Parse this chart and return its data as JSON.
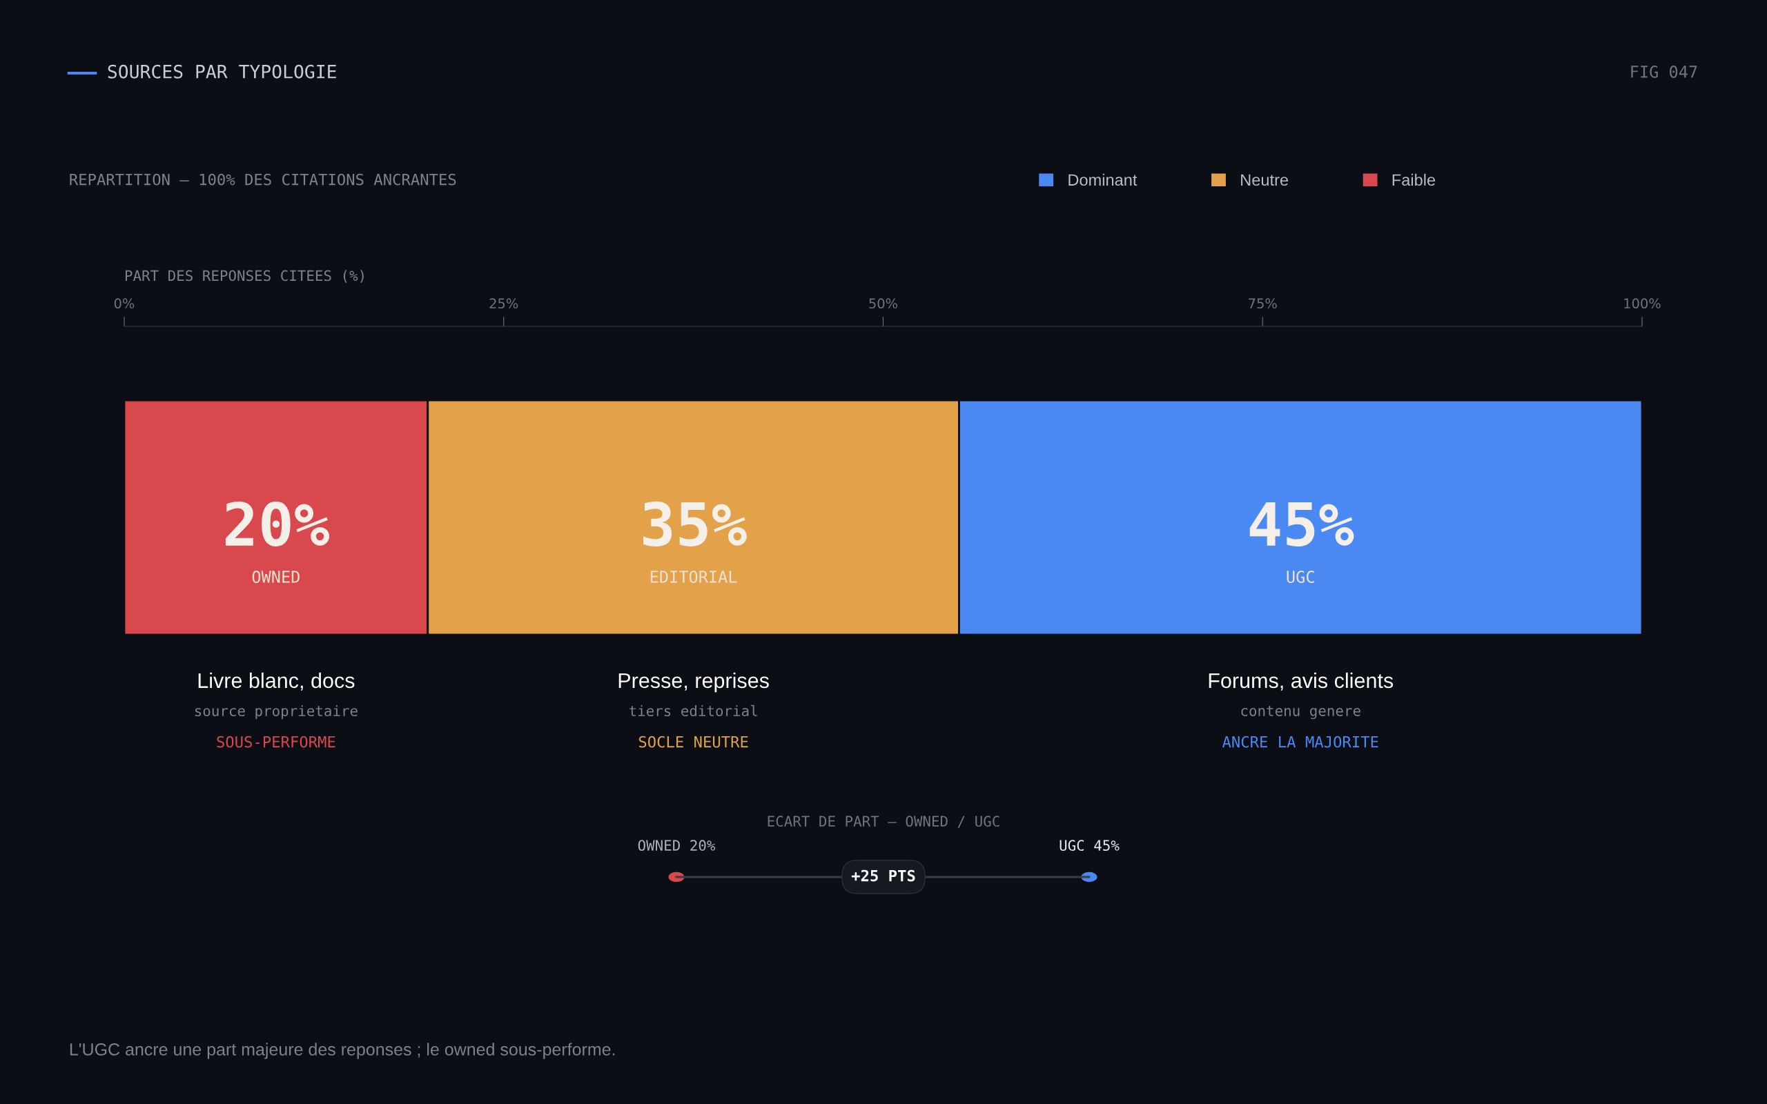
{
  "chart_data": {
    "type": "bar",
    "orientation": "horizontal",
    "stacked": true,
    "title": "SOURCES PAR TYPOLOGIE",
    "subtitle": "REPARTITION — 100% DES CITATIONS ANCRANTES",
    "xlabel": "PART DES REPONSES CITEES (%)",
    "categories": [
      null
    ],
    "series": [
      {
        "name": "Faible",
        "color": "#d9484c",
        "values": [
          20
        ],
        "value_labels": [
          "20%"
        ]
      },
      {
        "name": "Neutre",
        "color": "#e3a14a",
        "values": [
          35
        ],
        "value_labels": [
          "35%"
        ]
      },
      {
        "name": "Dominant",
        "color": "#4a88f2",
        "values": [
          45
        ],
        "value_labels": [
          "45%"
        ]
      }
    ],
    "xlim": [
      0,
      100
    ],
    "xticks": [
      {
        "value": 0,
        "label": "0%"
      },
      {
        "value": 25,
        "label": "25%"
      },
      {
        "value": 50,
        "label": "50%"
      },
      {
        "value": 75,
        "label": "75%"
      },
      {
        "value": 100,
        "label": "100%"
      }
    ],
    "grid": false,
    "legend": "top right",
    "annotations": [
      "OWNED",
      "Livre blanc, docs",
      "source proprietaire",
      "SOUS-PERFORME",
      "EDITORIAL",
      "Presse, reprises",
      "tiers editorial",
      "SOCLE NEUTRE",
      "UGC",
      "Forums, avis clients",
      "contenu genere",
      "ANCRE LA MAJORITE",
      "FIG 047",
      "ECART DE PART — OWNED / UGC",
      "OWNED 20%",
      "UGC 45%",
      "+25 PTS",
      "L'UGC ancre une part majeure des reponses ; le owned sous-performe."
    ]
  }
}
